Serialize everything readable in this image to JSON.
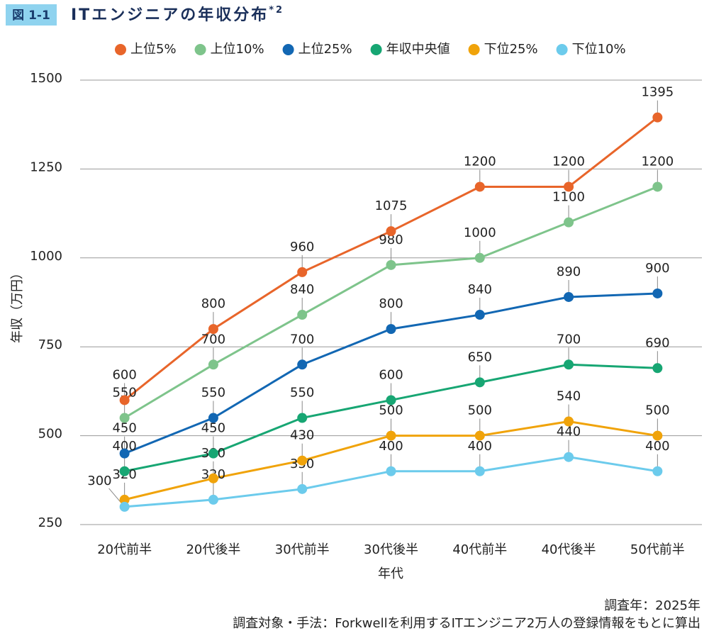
{
  "header": {
    "badge": "図 1-1",
    "title": "ITエンジニアの年収分布",
    "note_marker": "*2"
  },
  "chart_data": {
    "type": "line",
    "categories": [
      "20代前半",
      "20代後半",
      "30代前半",
      "30代後半",
      "40代前半",
      "40代後半",
      "50代前半"
    ],
    "series": [
      {
        "name": "上位5%",
        "color": "#e8652a",
        "values": [
          600,
          800,
          960,
          1075,
          1200,
          1200,
          1395
        ]
      },
      {
        "name": "上位10%",
        "color": "#7ec48b",
        "values": [
          550,
          700,
          840,
          980,
          1000,
          1100,
          1200
        ]
      },
      {
        "name": "上位25%",
        "color": "#1267b3",
        "values": [
          450,
          550,
          700,
          800,
          840,
          890,
          900
        ]
      },
      {
        "name": "年収中央値",
        "color": "#17a673",
        "values": [
          400,
          450,
          550,
          600,
          650,
          700,
          690
        ]
      },
      {
        "name": "下位25%",
        "color": "#f0a30a",
        "values": [
          320,
          380,
          430,
          500,
          500,
          540,
          500
        ]
      },
      {
        "name": "下位10%",
        "color": "#6ccbec",
        "values": [
          300,
          320,
          350,
          400,
          400,
          440,
          400
        ]
      }
    ],
    "ylim": [
      250,
      1500
    ],
    "yticks": [
      250,
      500,
      750,
      1000,
      1250,
      1500
    ],
    "grid": true,
    "y_label": "年収（万円）",
    "x_label": "年代",
    "legend": "top"
  },
  "footer": {
    "survey_year": "調査年：2025年",
    "method": "調査対象・手法：Forkwellを利用するITエンジニア2万人の登録情報をもとに算出"
  }
}
